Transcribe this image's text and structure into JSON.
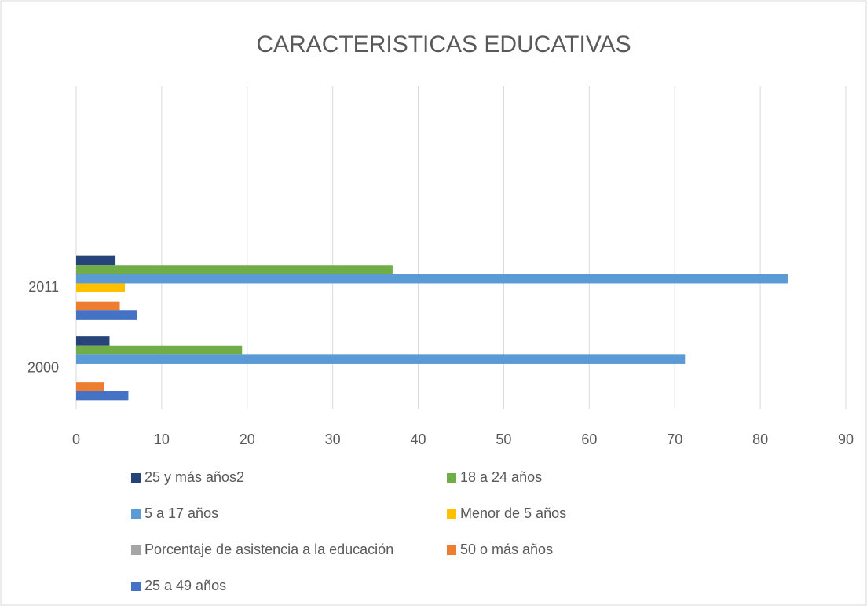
{
  "chart_data": {
    "type": "hbar",
    "title": "CARACTERISTICAS EDUCATIVAS",
    "categories": [
      "2000",
      "2011",
      null,
      null
    ],
    "series": [
      {
        "name": "25 y más años2",
        "color": "#264478",
        "values": [
          3.9,
          4.6,
          null,
          null
        ]
      },
      {
        "name": "18 a 24 años",
        "color": "#70ad47",
        "values": [
          19.4,
          37,
          null,
          null
        ]
      },
      {
        "name": "5 a 17 años",
        "color": "#5b9bd5",
        "values": [
          71.2,
          83.2,
          null,
          null
        ]
      },
      {
        "name": "Menor de 5 años",
        "color": "#ffc000",
        "values": [
          null,
          5.7,
          null,
          null
        ]
      },
      {
        "name": "Porcentaje de asistencia a la educación",
        "color": "#a5a5a5",
        "values": [
          null,
          null,
          null,
          null
        ]
      },
      {
        "name": "50 o más años",
        "color": "#ed7d31",
        "values": [
          3.3,
          5.1,
          null,
          null
        ]
      },
      {
        "name": "25 a 49 años",
        "color": "#4472c4",
        "values": [
          6.1,
          7.1,
          null,
          null
        ]
      }
    ],
    "xlim": [
      0,
      90
    ],
    "xticks": [
      0,
      10,
      20,
      30,
      40,
      50,
      60,
      70,
      80,
      90
    ],
    "grid": true,
    "legend": "bottom"
  }
}
